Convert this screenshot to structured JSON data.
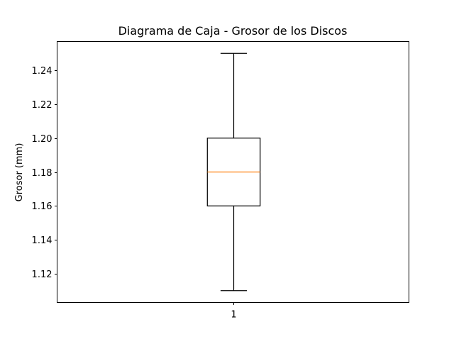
{
  "chart_data": {
    "type": "box",
    "title": "Diagrama de Caja - Grosor de los Discos",
    "xlabel": "",
    "ylabel": "Grosor (mm)",
    "ylim": [
      1.103,
      1.257
    ],
    "yticks": [
      "1.12",
      "1.14",
      "1.16",
      "1.18",
      "1.20",
      "1.22",
      "1.24"
    ],
    "ytick_values": [
      1.12,
      1.14,
      1.16,
      1.18,
      1.2,
      1.22,
      1.24
    ],
    "categories": [
      "1"
    ],
    "boxes": [
      {
        "whisker_low": 1.11,
        "q1": 1.16,
        "median": 1.18,
        "q3": 1.2,
        "whisker_high": 1.25
      }
    ],
    "grid": false,
    "colors": {
      "box": "#000000",
      "median": "#ff7f0e"
    }
  }
}
